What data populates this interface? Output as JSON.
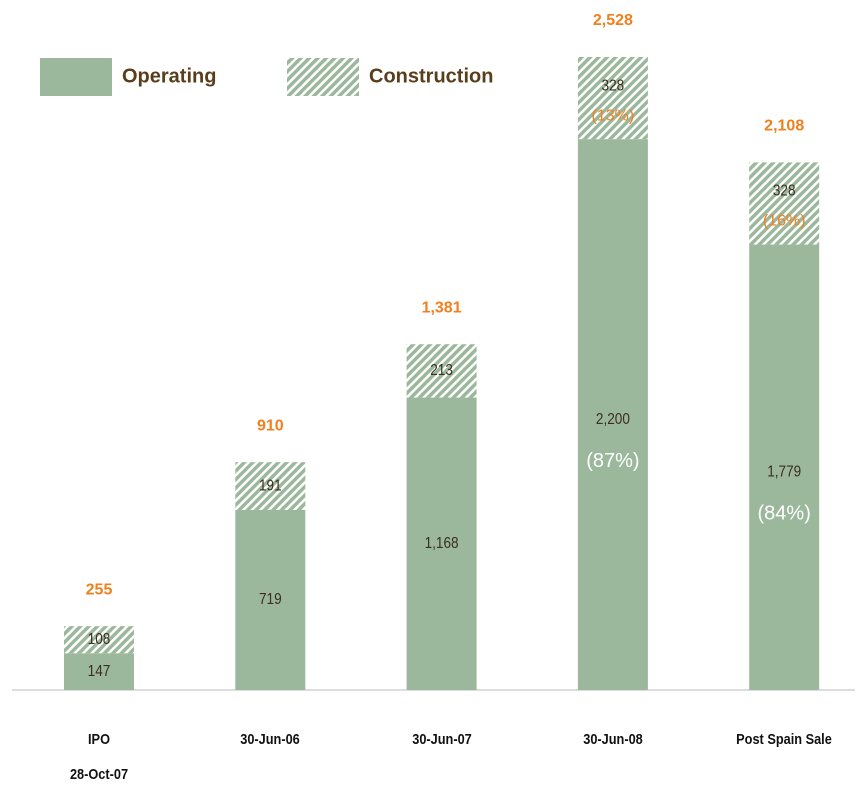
{
  "chart_data": {
    "type": "stacked_bar",
    "categories": [
      "IPO\n28-Oct-07",
      "30-Jun-06",
      "30-Jun-07",
      "30-Jun-08",
      "Post Spain Sale"
    ],
    "series": [
      {
        "name": "Operating",
        "color": "#9cb89c",
        "values": [
          147,
          719,
          1168,
          2200,
          1779
        ],
        "value_labels": [
          "147",
          "719",
          "1,168",
          "2,200",
          "1,779"
        ],
        "shares": [
          null,
          null,
          null,
          87,
          84
        ],
        "share_labels": [
          null,
          null,
          null,
          "(87%)",
          "(84%)"
        ]
      },
      {
        "name": "Construction",
        "color": "#9cb89c",
        "values": [
          108,
          191,
          213,
          328,
          328
        ],
        "value_labels": [
          "108",
          "191",
          "213",
          "328",
          "328"
        ],
        "shares": [
          null,
          null,
          null,
          13,
          16
        ],
        "share_labels": [
          null,
          null,
          null,
          "(13%)",
          "(16%)"
        ]
      }
    ],
    "totals": [
      255,
      910,
      1381,
      2528,
      2108
    ],
    "total_labels": [
      "255",
      "910",
      "1,381",
      "2,528",
      "2,108"
    ],
    "total_color": "#f07f1e"
  }
}
